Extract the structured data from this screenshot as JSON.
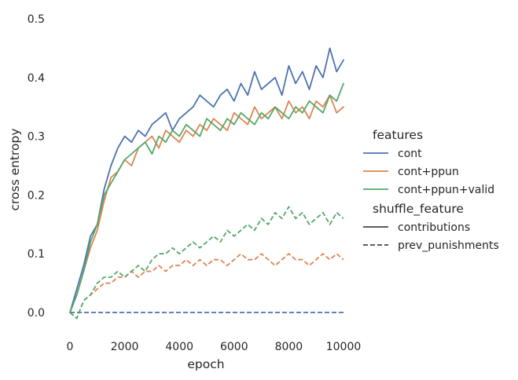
{
  "chart_data": {
    "type": "line",
    "title": "",
    "xlabel": "epoch",
    "ylabel": "cross entropy",
    "xlim": [
      0,
      10000
    ],
    "ylim": [
      -0.04,
      0.52
    ],
    "xticks": [
      0,
      2000,
      4000,
      6000,
      8000,
      10000
    ],
    "xtick_labels": [
      "0",
      "2000",
      "4000",
      "6000",
      "8000",
      "10000"
    ],
    "yticks": [
      0.0,
      0.1,
      0.2,
      0.3,
      0.4,
      0.5
    ],
    "ytick_labels": [
      "0.0",
      "0.1",
      "0.2",
      "0.3",
      "0.4",
      "0.5"
    ],
    "grid": false,
    "legend_position": "right",
    "legend": {
      "hue_title": "features",
      "hue_entries": [
        {
          "label": "cont",
          "color": "#4c72b0"
        },
        {
          "label": "cont+ppun",
          "color": "#dd8452"
        },
        {
          "label": "cont+ppun+valid",
          "color": "#55a868"
        }
      ],
      "style_title": "shuffle_feature",
      "style_entries": [
        {
          "label": "contributions",
          "dash": "solid"
        },
        {
          "label": "prev_punishments",
          "dash": "dashed"
        }
      ]
    },
    "x": [
      0,
      250,
      500,
      750,
      1000,
      1250,
      1500,
      1750,
      2000,
      2250,
      2500,
      2750,
      3000,
      3250,
      3500,
      3750,
      4000,
      4250,
      4500,
      4750,
      5000,
      5250,
      5500,
      5750,
      6000,
      6250,
      6500,
      6750,
      7000,
      7250,
      7500,
      7750,
      8000,
      8250,
      8500,
      8750,
      9000,
      9250,
      9500,
      9750,
      10000
    ],
    "series": [
      {
        "name": "cont",
        "feature": "cont",
        "shuffle": "contributions",
        "color": "#4c72b0",
        "dash": "solid",
        "values": [
          0.0,
          0.04,
          0.08,
          0.13,
          0.15,
          0.21,
          0.25,
          0.28,
          0.3,
          0.29,
          0.31,
          0.3,
          0.32,
          0.33,
          0.34,
          0.31,
          0.33,
          0.34,
          0.35,
          0.37,
          0.36,
          0.35,
          0.37,
          0.38,
          0.36,
          0.39,
          0.37,
          0.41,
          0.38,
          0.39,
          0.4,
          0.37,
          0.42,
          0.39,
          0.41,
          0.38,
          0.42,
          0.4,
          0.45,
          0.41,
          0.43
        ]
      },
      {
        "name": "cont+ppun",
        "feature": "cont+ppun",
        "shuffle": "contributions",
        "color": "#dd8452",
        "dash": "solid",
        "values": [
          0.0,
          0.03,
          0.07,
          0.11,
          0.14,
          0.19,
          0.23,
          0.24,
          0.26,
          0.25,
          0.28,
          0.29,
          0.3,
          0.28,
          0.31,
          0.3,
          0.29,
          0.31,
          0.3,
          0.32,
          0.31,
          0.33,
          0.32,
          0.31,
          0.34,
          0.33,
          0.32,
          0.35,
          0.33,
          0.34,
          0.35,
          0.33,
          0.36,
          0.34,
          0.35,
          0.33,
          0.36,
          0.35,
          0.37,
          0.34,
          0.35
        ]
      },
      {
        "name": "cont+ppun+valid",
        "feature": "cont+ppun+valid",
        "shuffle": "contributions",
        "color": "#55a868",
        "dash": "solid",
        "values": [
          0.0,
          0.03,
          0.07,
          0.12,
          0.15,
          0.2,
          0.22,
          0.24,
          0.26,
          0.27,
          0.28,
          0.29,
          0.27,
          0.3,
          0.29,
          0.31,
          0.3,
          0.32,
          0.31,
          0.3,
          0.33,
          0.32,
          0.31,
          0.33,
          0.32,
          0.34,
          0.33,
          0.32,
          0.34,
          0.33,
          0.35,
          0.34,
          0.33,
          0.35,
          0.34,
          0.36,
          0.35,
          0.34,
          0.37,
          0.36,
          0.39
        ]
      },
      {
        "name": "cont",
        "feature": "cont",
        "shuffle": "prev_punishments",
        "color": "#4c72b0",
        "dash": "dashed",
        "values": [
          0.0,
          0.0,
          0.0,
          0.0,
          0.0,
          0.0,
          0.0,
          0.0,
          0.0,
          0.0,
          0.0,
          0.0,
          0.0,
          0.0,
          0.0,
          0.0,
          0.0,
          0.0,
          0.0,
          0.0,
          0.0,
          0.0,
          0.0,
          0.0,
          0.0,
          0.0,
          0.0,
          0.0,
          0.0,
          0.0,
          0.0,
          0.0,
          0.0,
          0.0,
          0.0,
          0.0,
          0.0,
          0.0,
          0.0,
          0.0,
          0.0
        ]
      },
      {
        "name": "cont+ppun",
        "feature": "cont+ppun",
        "shuffle": "prev_punishments",
        "color": "#dd8452",
        "dash": "dashed",
        "values": [
          0.0,
          -0.01,
          0.02,
          0.03,
          0.04,
          0.05,
          0.05,
          0.06,
          0.06,
          0.07,
          0.06,
          0.07,
          0.07,
          0.08,
          0.07,
          0.08,
          0.08,
          0.09,
          0.08,
          0.09,
          0.08,
          0.09,
          0.09,
          0.08,
          0.09,
          0.1,
          0.09,
          0.09,
          0.1,
          0.09,
          0.08,
          0.09,
          0.1,
          0.09,
          0.09,
          0.08,
          0.09,
          0.1,
          0.09,
          0.1,
          0.09
        ]
      },
      {
        "name": "cont+ppun+valid",
        "feature": "cont+ppun+valid",
        "shuffle": "prev_punishments",
        "color": "#55a868",
        "dash": "dashed",
        "values": [
          0.0,
          -0.01,
          0.02,
          0.03,
          0.05,
          0.06,
          0.06,
          0.07,
          0.06,
          0.07,
          0.08,
          0.07,
          0.09,
          0.1,
          0.1,
          0.11,
          0.1,
          0.11,
          0.12,
          0.11,
          0.12,
          0.13,
          0.12,
          0.14,
          0.13,
          0.14,
          0.15,
          0.14,
          0.16,
          0.15,
          0.17,
          0.16,
          0.18,
          0.16,
          0.17,
          0.15,
          0.16,
          0.17,
          0.15,
          0.17,
          0.16
        ]
      }
    ]
  }
}
